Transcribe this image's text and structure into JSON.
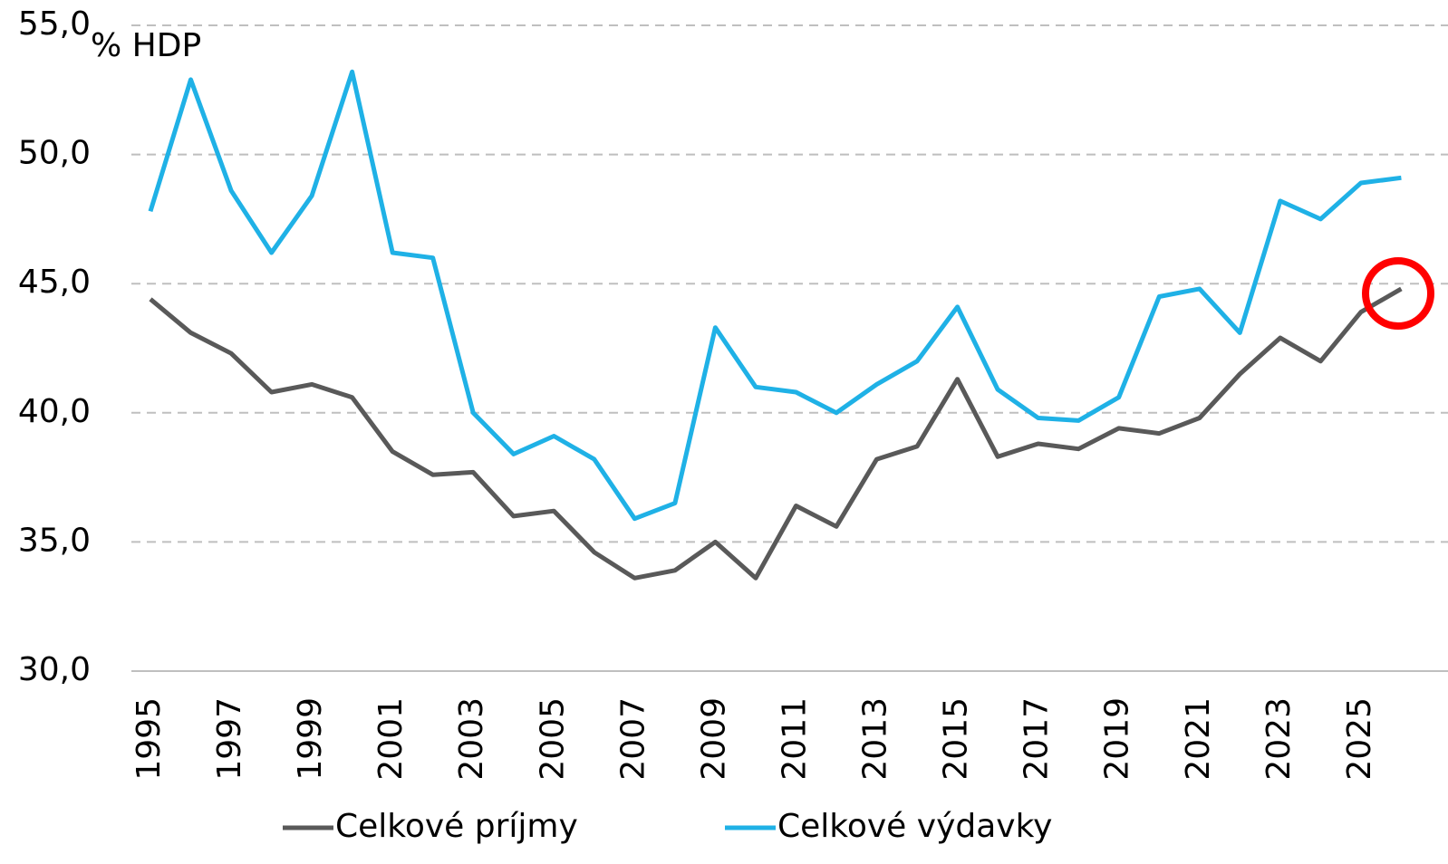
{
  "chart_data": {
    "type": "line",
    "y_unit_label": "% HDP",
    "categories": [
      "1995",
      null,
      "1997",
      null,
      "1999",
      null,
      "2001",
      null,
      "2003",
      null,
      "2005",
      null,
      "2007",
      null,
      "2009",
      null,
      "2011",
      null,
      "2013",
      null,
      "2015",
      null,
      "2017",
      null,
      "2019",
      null,
      "2021",
      null,
      "2023",
      null,
      "2025",
      null
    ],
    "series": [
      {
        "name": "Celkové príjmy",
        "color": "#595959",
        "values": [
          44.4,
          43.1,
          42.3,
          40.8,
          41.1,
          40.6,
          38.5,
          37.6,
          37.7,
          36.0,
          36.2,
          34.6,
          33.6,
          33.9,
          35.0,
          33.6,
          36.4,
          35.6,
          38.2,
          38.7,
          41.3,
          38.3,
          38.8,
          38.6,
          39.4,
          39.2,
          39.8,
          41.5,
          42.9,
          42.0,
          43.9,
          44.8
        ]
      },
      {
        "name": "Celkové výdavky",
        "color": "#1fb1e6",
        "values": [
          47.8,
          52.9,
          48.6,
          46.2,
          48.4,
          53.2,
          46.2,
          46.0,
          40.0,
          38.4,
          39.1,
          38.2,
          35.9,
          36.5,
          43.3,
          41.0,
          40.8,
          40.0,
          41.1,
          42.0,
          44.1,
          40.9,
          39.8,
          39.7,
          40.6,
          44.5,
          44.8,
          43.1,
          48.2,
          47.5,
          48.9,
          49.1
        ]
      }
    ],
    "ylim": [
      30,
      55
    ],
    "yticks": [
      {
        "value": 30,
        "label": "30,0"
      },
      {
        "value": 35,
        "label": "35,0"
      },
      {
        "value": 40,
        "label": "40,0"
      },
      {
        "value": 45,
        "label": "45,0"
      },
      {
        "value": 50,
        "label": "50,0"
      },
      {
        "value": 55,
        "label": "55,0"
      }
    ],
    "grid": true
  }
}
